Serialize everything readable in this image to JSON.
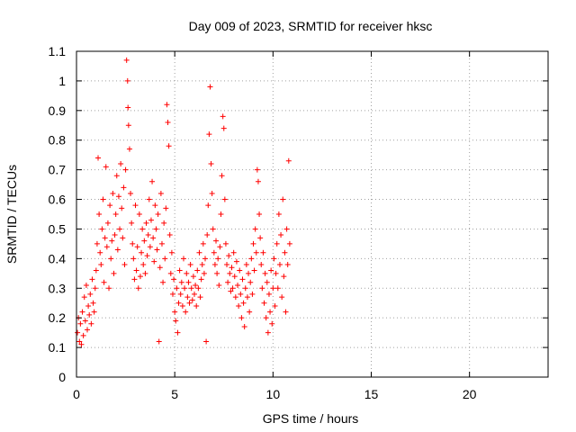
{
  "chart_data": {
    "type": "scatter",
    "title": "Day 009 of 2023, SRMTID for receiver hksc",
    "xlabel": "GPS time / hours",
    "ylabel": "SRMTID / TECUs",
    "xlim": [
      0,
      24
    ],
    "ylim": [
      0,
      1.1
    ],
    "x_ticks": [
      0,
      5,
      10,
      15,
      20
    ],
    "x_tick_labels": [
      "0",
      "5",
      "10",
      "15",
      "20"
    ],
    "y_ticks": [
      0,
      0.1,
      0.2,
      0.3,
      0.4,
      0.5,
      0.6,
      0.7,
      0.8,
      0.9,
      1,
      1.1
    ],
    "y_tick_labels": [
      "0",
      "0.1",
      "0.2",
      "0.3",
      "0.4",
      "0.5",
      "0.6",
      "0.7",
      "0.8",
      "0.9",
      "1",
      "1.1"
    ],
    "grid": true,
    "marker": "+",
    "series": [
      {
        "name": "SRMTID",
        "color": "#ff0000",
        "points": [
          [
            0.05,
            0.15
          ],
          [
            0.1,
            0.2
          ],
          [
            0.15,
            0.12
          ],
          [
            0.2,
            0.18
          ],
          [
            0.25,
            0.11
          ],
          [
            0.3,
            0.22
          ],
          [
            0.35,
            0.14
          ],
          [
            0.4,
            0.27
          ],
          [
            0.45,
            0.19
          ],
          [
            0.5,
            0.31
          ],
          [
            0.55,
            0.16
          ],
          [
            0.6,
            0.24
          ],
          [
            0.65,
            0.21
          ],
          [
            0.7,
            0.28
          ],
          [
            0.75,
            0.18
          ],
          [
            0.8,
            0.33
          ],
          [
            0.85,
            0.25
          ],
          [
            0.9,
            0.22
          ],
          [
            0.95,
            0.3
          ],
          [
            1.0,
            0.36
          ],
          [
            1.05,
            0.45
          ],
          [
            1.1,
            0.74
          ],
          [
            1.15,
            0.55
          ],
          [
            1.2,
            0.42
          ],
          [
            1.25,
            0.38
          ],
          [
            1.3,
            0.5
          ],
          [
            1.35,
            0.6
          ],
          [
            1.4,
            0.32
          ],
          [
            1.45,
            0.47
          ],
          [
            1.5,
            0.71
          ],
          [
            1.55,
            0.44
          ],
          [
            1.6,
            0.52
          ],
          [
            1.65,
            0.3
          ],
          [
            1.7,
            0.58
          ],
          [
            1.75,
            0.4
          ],
          [
            1.8,
            0.46
          ],
          [
            1.85,
            0.62
          ],
          [
            1.9,
            0.35
          ],
          [
            1.95,
            0.48
          ],
          [
            2.0,
            0.55
          ],
          [
            2.05,
            0.68
          ],
          [
            2.1,
            0.43
          ],
          [
            2.15,
            0.61
          ],
          [
            2.2,
            0.5
          ],
          [
            2.25,
            0.72
          ],
          [
            2.3,
            0.57
          ],
          [
            2.35,
            0.47
          ],
          [
            2.4,
            0.64
          ],
          [
            2.45,
            0.38
          ],
          [
            2.5,
            0.7
          ],
          [
            2.55,
            1.07
          ],
          [
            2.6,
            1.0
          ],
          [
            2.62,
            0.91
          ],
          [
            2.65,
            0.85
          ],
          [
            2.7,
            0.77
          ],
          [
            2.75,
            0.62
          ],
          [
            2.8,
            0.52
          ],
          [
            2.85,
            0.45
          ],
          [
            2.9,
            0.4
          ],
          [
            2.95,
            0.33
          ],
          [
            3.0,
            0.58
          ],
          [
            3.05,
            0.36
          ],
          [
            3.1,
            0.44
          ],
          [
            3.15,
            0.3
          ],
          [
            3.2,
            0.55
          ],
          [
            3.25,
            0.34
          ],
          [
            3.3,
            0.42
          ],
          [
            3.35,
            0.5
          ],
          [
            3.4,
            0.38
          ],
          [
            3.45,
            0.46
          ],
          [
            3.5,
            0.35
          ],
          [
            3.55,
            0.52
          ],
          [
            3.6,
            0.41
          ],
          [
            3.65,
            0.48
          ],
          [
            3.7,
            0.6
          ],
          [
            3.75,
            0.44
          ],
          [
            3.8,
            0.53
          ],
          [
            3.85,
            0.66
          ],
          [
            3.9,
            0.47
          ],
          [
            3.95,
            0.39
          ],
          [
            4.0,
            0.58
          ],
          [
            4.05,
            0.5
          ],
          [
            4.1,
            0.43
          ],
          [
            4.15,
            0.55
          ],
          [
            4.2,
            0.12
          ],
          [
            4.25,
            0.37
          ],
          [
            4.3,
            0.62
          ],
          [
            4.35,
            0.45
          ],
          [
            4.4,
            0.32
          ],
          [
            4.45,
            0.52
          ],
          [
            4.5,
            0.4
          ],
          [
            4.55,
            0.57
          ],
          [
            4.6,
            0.92
          ],
          [
            4.65,
            0.86
          ],
          [
            4.7,
            0.78
          ],
          [
            4.75,
            0.48
          ],
          [
            4.8,
            0.35
          ],
          [
            4.85,
            0.42
          ],
          [
            4.9,
            0.28
          ],
          [
            4.95,
            0.33
          ],
          [
            5.0,
            0.22
          ],
          [
            5.05,
            0.19
          ],
          [
            5.1,
            0.3
          ],
          [
            5.15,
            0.15
          ],
          [
            5.2,
            0.25
          ],
          [
            5.25,
            0.36
          ],
          [
            5.3,
            0.28
          ],
          [
            5.35,
            0.32
          ],
          [
            5.4,
            0.24
          ],
          [
            5.45,
            0.4
          ],
          [
            5.5,
            0.3
          ],
          [
            5.55,
            0.22
          ],
          [
            5.6,
            0.35
          ],
          [
            5.65,
            0.27
          ],
          [
            5.7,
            0.32
          ],
          [
            5.75,
            0.25
          ],
          [
            5.8,
            0.38
          ],
          [
            5.85,
            0.3
          ],
          [
            5.9,
            0.26
          ],
          [
            5.95,
            0.34
          ],
          [
            6.0,
            0.28
          ],
          [
            6.05,
            0.31
          ],
          [
            6.1,
            0.24
          ],
          [
            6.15,
            0.36
          ],
          [
            6.2,
            0.3
          ],
          [
            6.25,
            0.42
          ],
          [
            6.3,
            0.27
          ],
          [
            6.35,
            0.33
          ],
          [
            6.4,
            0.38
          ],
          [
            6.45,
            0.45
          ],
          [
            6.5,
            0.35
          ],
          [
            6.55,
            0.4
          ],
          [
            6.6,
            0.12
          ],
          [
            6.65,
            0.48
          ],
          [
            6.7,
            0.58
          ],
          [
            6.75,
            0.82
          ],
          [
            6.8,
            0.98
          ],
          [
            6.85,
            0.72
          ],
          [
            6.9,
            0.62
          ],
          [
            6.95,
            0.5
          ],
          [
            7.0,
            0.42
          ],
          [
            7.05,
            0.38
          ],
          [
            7.1,
            0.46
          ],
          [
            7.15,
            0.35
          ],
          [
            7.2,
            0.4
          ],
          [
            7.25,
            0.31
          ],
          [
            7.3,
            0.44
          ],
          [
            7.35,
            0.55
          ],
          [
            7.4,
            0.68
          ],
          [
            7.45,
            0.88
          ],
          [
            7.5,
            0.84
          ],
          [
            7.55,
            0.6
          ],
          [
            7.6,
            0.45
          ],
          [
            7.65,
            0.38
          ],
          [
            7.7,
            0.32
          ],
          [
            7.75,
            0.41
          ],
          [
            7.8,
            0.35
          ],
          [
            7.85,
            0.29
          ],
          [
            7.9,
            0.37
          ],
          [
            7.95,
            0.3
          ],
          [
            8.0,
            0.42
          ],
          [
            8.05,
            0.34
          ],
          [
            8.1,
            0.27
          ],
          [
            8.15,
            0.39
          ],
          [
            8.2,
            0.31
          ],
          [
            8.25,
            0.24
          ],
          [
            8.3,
            0.36
          ],
          [
            8.35,
            0.28
          ],
          [
            8.4,
            0.2
          ],
          [
            8.45,
            0.33
          ],
          [
            8.5,
            0.25
          ],
          [
            8.55,
            0.17
          ],
          [
            8.6,
            0.3
          ],
          [
            8.65,
            0.38
          ],
          [
            8.7,
            0.27
          ],
          [
            8.75,
            0.35
          ],
          [
            8.8,
            0.22
          ],
          [
            8.85,
            0.32
          ],
          [
            8.9,
            0.4
          ],
          [
            8.95,
            0.28
          ],
          [
            9.0,
            0.45
          ],
          [
            9.05,
            0.36
          ],
          [
            9.1,
            0.5
          ],
          [
            9.15,
            0.42
          ],
          [
            9.2,
            0.7
          ],
          [
            9.25,
            0.66
          ],
          [
            9.3,
            0.55
          ],
          [
            9.35,
            0.47
          ],
          [
            9.4,
            0.38
          ],
          [
            9.45,
            0.3
          ],
          [
            9.5,
            0.42
          ],
          [
            9.55,
            0.25
          ],
          [
            9.6,
            0.35
          ],
          [
            9.65,
            0.2
          ],
          [
            9.7,
            0.32
          ],
          [
            9.75,
            0.15
          ],
          [
            9.8,
            0.28
          ],
          [
            9.85,
            0.22
          ],
          [
            9.9,
            0.36
          ],
          [
            9.95,
            0.18
          ],
          [
            10.0,
            0.3
          ],
          [
            10.05,
            0.4
          ],
          [
            10.1,
            0.24
          ],
          [
            10.15,
            0.35
          ],
          [
            10.2,
            0.45
          ],
          [
            10.25,
            0.3
          ],
          [
            10.3,
            0.55
          ],
          [
            10.35,
            0.38
          ],
          [
            10.4,
            0.48
          ],
          [
            10.45,
            0.27
          ],
          [
            10.5,
            0.6
          ],
          [
            10.55,
            0.34
          ],
          [
            10.6,
            0.42
          ],
          [
            10.65,
            0.22
          ],
          [
            10.7,
            0.5
          ],
          [
            10.75,
            0.38
          ],
          [
            10.8,
            0.73
          ],
          [
            10.85,
            0.45
          ]
        ]
      }
    ]
  }
}
